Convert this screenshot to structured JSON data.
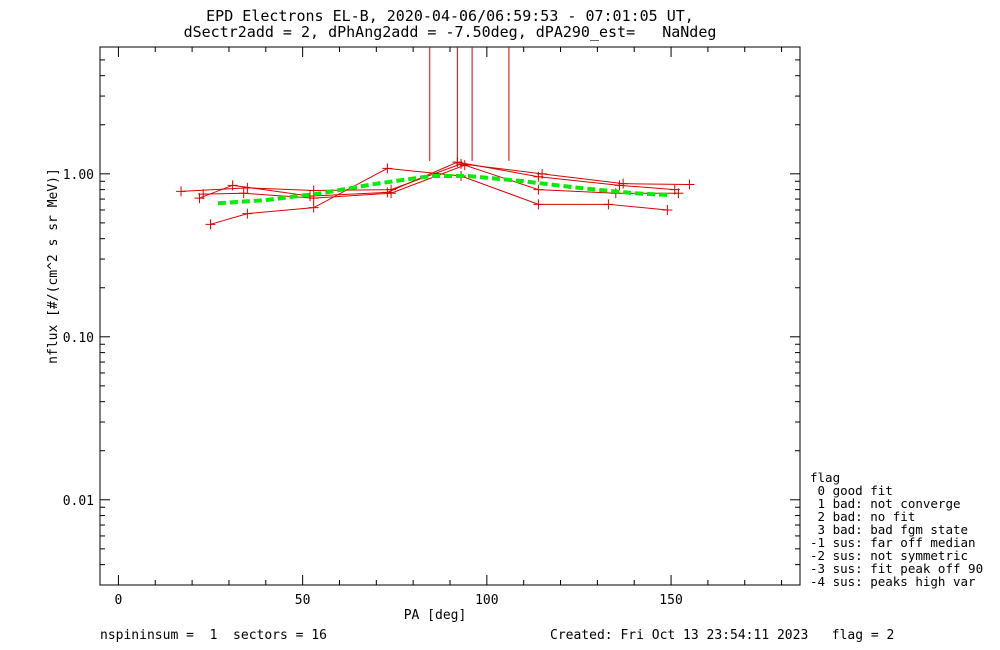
{
  "title_line1": "EPD Electrons EL-B, 2020-04-06/06:59:53 - 07:01:05 UT,",
  "title_line2": "dSectr2add = 2, dPhAng2add = -7.50deg, dPA290_est=   NaNdeg",
  "footer_left": "nspininsum =  1  sectors = 16",
  "footer_right": "Created: Fri Oct 13 23:54:11 2023   flag = 2",
  "legend": {
    "title": "flag",
    "items": [
      " 0 good fit",
      " 1 bad: not converge",
      " 2 bad: no fit",
      " 3 bad: bad fgm state",
      "-1 sus: far off median",
      "-2 sus: not symmetric",
      "-3 sus: fit peak off 90",
      "-4 sus: peaks high var"
    ]
  },
  "colors": {
    "data": "#dd0000",
    "fit": "#00ee00",
    "axes": "#000000"
  },
  "chart_data": {
    "type": "line",
    "xlabel": "PA [deg]",
    "ylabel": "nflux [#/(cm^2 s sr MeV)]",
    "xlim": [
      -5,
      185
    ],
    "ylim": [
      0.003,
      6
    ],
    "yscale": "log",
    "xticks": [
      0,
      50,
      100,
      150
    ],
    "xtick_labels": [
      "0",
      "50",
      "100",
      "150"
    ],
    "yticks": [
      0.01,
      0.1,
      1.0
    ],
    "ytick_labels": [
      "0.01",
      "0.10",
      "1.00"
    ],
    "grid": false,
    "series": [
      {
        "x": [
          17,
          35,
          53,
          74,
          93,
          115,
          137,
          155
        ],
        "y": [
          0.78,
          0.82,
          0.79,
          0.8,
          1.15,
          1.0,
          0.87,
          0.86
        ]
      },
      {
        "x": [
          22,
          31,
          52,
          73,
          92,
          114,
          136,
          151
        ],
        "y": [
          0.71,
          0.85,
          0.73,
          0.77,
          1.18,
          0.96,
          0.85,
          0.8
        ]
      },
      {
        "x": [
          25,
          35,
          53,
          73,
          93,
          114,
          133,
          149
        ],
        "y": [
          0.49,
          0.57,
          0.62,
          1.08,
          0.97,
          0.65,
          0.65,
          0.6
        ]
      },
      {
        "x": [
          23,
          34,
          53,
          74,
          94,
          114,
          135,
          152
        ],
        "y": [
          0.75,
          0.76,
          0.71,
          0.76,
          1.13,
          0.8,
          0.76,
          0.76
        ]
      }
    ],
    "fit": {
      "x": [
        27,
        40,
        55,
        70,
        85,
        95,
        110,
        125,
        140,
        150
      ],
      "y": [
        0.66,
        0.69,
        0.76,
        0.87,
        0.97,
        0.97,
        0.9,
        0.82,
        0.76,
        0.74
      ]
    },
    "vertical_markers": {
      "x": [
        84.5,
        92,
        96,
        106
      ],
      "y_from": 1.2,
      "y_to": 6
    }
  }
}
